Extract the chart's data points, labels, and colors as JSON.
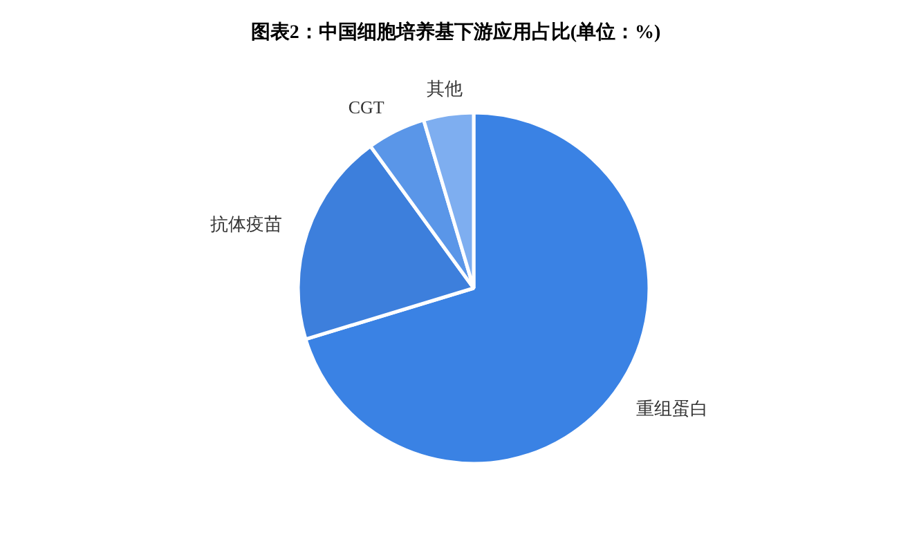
{
  "chart_data": {
    "type": "pie",
    "title": "图表2：中国细胞培养基下游应用占比(单位：%)",
    "categories": [
      "重组蛋白",
      "抗体疫苗",
      "CGT",
      "其他"
    ],
    "values": [
      70.3,
      19.7,
      5.4,
      4.6
    ],
    "colors": [
      "#3a82e4",
      "#3d7fdc",
      "#5a96e8",
      "#7eaef0"
    ]
  }
}
